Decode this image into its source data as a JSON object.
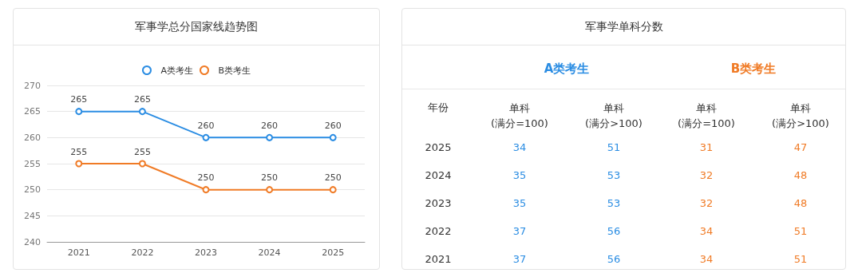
{
  "chart_data": [
    {
      "type": "line",
      "title": "军事学总分国家线趋势图",
      "categories": [
        "2021",
        "2022",
        "2023",
        "2024",
        "2025"
      ],
      "series": [
        {
          "name": "A类考生",
          "color": "#2b8de3",
          "values": [
            265,
            265,
            260,
            260,
            260
          ]
        },
        {
          "name": "B类考生",
          "color": "#f07b26",
          "values": [
            255,
            255,
            250,
            250,
            250
          ]
        }
      ],
      "ylim": [
        240,
        270
      ],
      "yticks": [
        240,
        245,
        250,
        255,
        260,
        265,
        270
      ],
      "grid": "y",
      "legend": "top",
      "marker": "circle",
      "data_labels": true
    },
    {
      "type": "heatmap",
      "title": "军事学单科分数",
      "ylabel": "年份",
      "categories": [
        "单科\n(满分=100)",
        "单科\n(满分>100)",
        "单科\n(满分=100)",
        "单科\n(满分>100)"
      ],
      "colors": [
        "#2b8de3",
        "#2b8de3",
        "#f07b26",
        "#f07b26"
      ],
      "y_categories": [
        "2025",
        "2024",
        "2023",
        "2022",
        "2021"
      ],
      "annotations": [
        "A类考生",
        "B类考生"
      ],
      "cells": [
        [
          34,
          51,
          31,
          47
        ],
        [
          35,
          53,
          32,
          48
        ],
        [
          35,
          53,
          32,
          48
        ],
        [
          37,
          56,
          34,
          51
        ],
        [
          37,
          56,
          34,
          51
        ]
      ],
      "data_labels": true
    }
  ]
}
